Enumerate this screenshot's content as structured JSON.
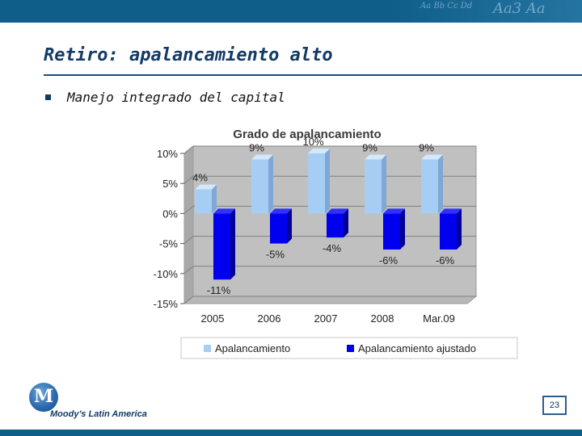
{
  "slide": {
    "title": "Retiro: apalancamiento alto",
    "bullet": "Manejo integrado del capital",
    "page_number": "23",
    "logo_text": "Moody’s Latin America",
    "logo_letter": "M"
  },
  "colors": {
    "band": "#0f5e8a",
    "title": "#123a66",
    "series1": "#a6cdf4",
    "series2": "#0000ee",
    "plot_bg": "#c0c0c0"
  },
  "chart_data": {
    "type": "bar",
    "title": "Grado de apalancamiento",
    "categories": [
      "2005",
      "2006",
      "2007",
      "2008",
      "Mar.09"
    ],
    "series": [
      {
        "name": "Apalancamiento",
        "values": [
          4,
          9,
          10,
          9,
          9
        ],
        "labels": [
          "4%",
          "9%",
          "10%",
          "9%",
          "9%"
        ]
      },
      {
        "name": "Apalancamiento ajustado",
        "values": [
          -11,
          -5,
          -4,
          -6,
          -6
        ],
        "labels": [
          "-11%",
          "-5%",
          "-4%",
          "-6%",
          "-6%"
        ]
      }
    ],
    "yticks": [
      "10%",
      "5%",
      "0%",
      "-5%",
      "-10%",
      "-15%"
    ],
    "ylim": [
      -15,
      10
    ],
    "grid": true,
    "legend": "bottom",
    "xlabel": "",
    "ylabel": ""
  }
}
